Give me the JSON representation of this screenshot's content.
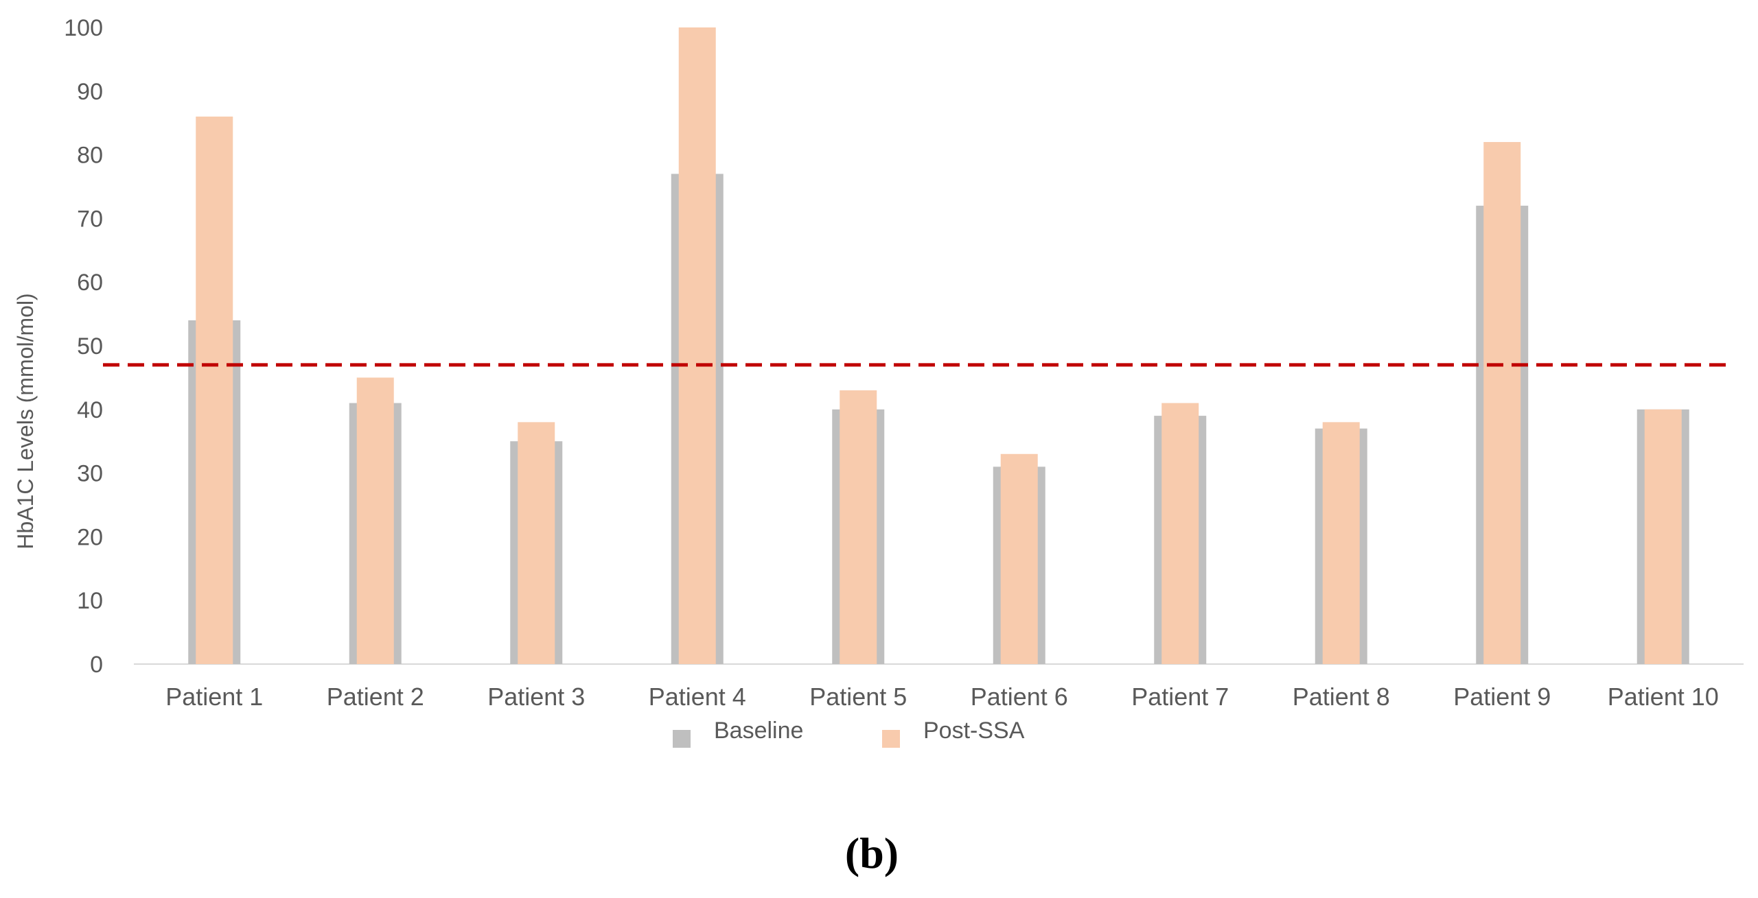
{
  "chart_data": {
    "type": "bar",
    "categories": [
      "Patient 1",
      "Patient 2",
      "Patient 3",
      "Patient 4",
      "Patient 5",
      "Patient 6",
      "Patient 7",
      "Patient 8",
      "Patient 9",
      "Patient 10"
    ],
    "series": [
      {
        "name": "Baseline",
        "values": [
          54,
          41,
          35,
          77,
          40,
          31,
          39,
          37,
          72,
          40
        ],
        "color": "#BFBFBF"
      },
      {
        "name": "Post-SSA",
        "values": [
          86,
          45,
          38,
          100,
          43,
          33,
          41,
          38,
          82,
          40
        ],
        "color": "#F8CBAD"
      }
    ],
    "ylabel": "HbA1C Levels (mmol/mol)",
    "xlabel": "",
    "title": "",
    "ylim": [
      0,
      100
    ],
    "yticks": [
      "0",
      "10",
      "20",
      "30",
      "40",
      "50",
      "60",
      "70",
      "80",
      "90",
      "100"
    ],
    "reference_line": {
      "value": 47,
      "style": "dashed",
      "color": "#C00000"
    },
    "legend_position": "bottom",
    "grid": false,
    "panel_label": "(b)"
  }
}
